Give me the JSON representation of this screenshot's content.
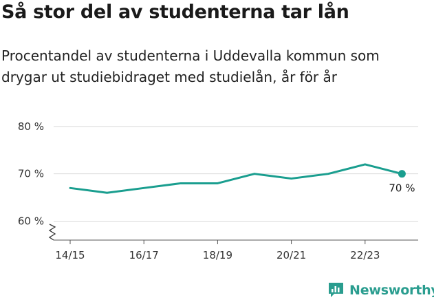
{
  "title": "Så stor del av studenterna tar lån",
  "subtitle": "Procentandel av studenterna i Uddevalla kommun som drygar ut studiebidraget med studielån, år för år",
  "brand": {
    "name": "Newsworthy",
    "icon": "newsworthy-logo-icon",
    "color": "#2a9d8f"
  },
  "chart_data": {
    "type": "line",
    "x": [
      "14/15",
      "15/16",
      "16/17",
      "17/18",
      "18/19",
      "19/20",
      "20/21",
      "21/22",
      "22/23",
      "23/24"
    ],
    "x_tick_labels": [
      "14/15",
      "16/17",
      "18/19",
      "20/21",
      "22/23"
    ],
    "series": [
      {
        "values": [
          67,
          66,
          67,
          68,
          68,
          70,
          69,
          70,
          72,
          70
        ],
        "color": "#1a9e8f"
      }
    ],
    "ylim": [
      56,
      81
    ],
    "y_ticks": [
      60,
      70,
      80
    ],
    "y_tick_labels": [
      "60 %",
      "70 %",
      "80 %"
    ],
    "axis_break": true,
    "grid": true,
    "end_label": "70 %"
  }
}
